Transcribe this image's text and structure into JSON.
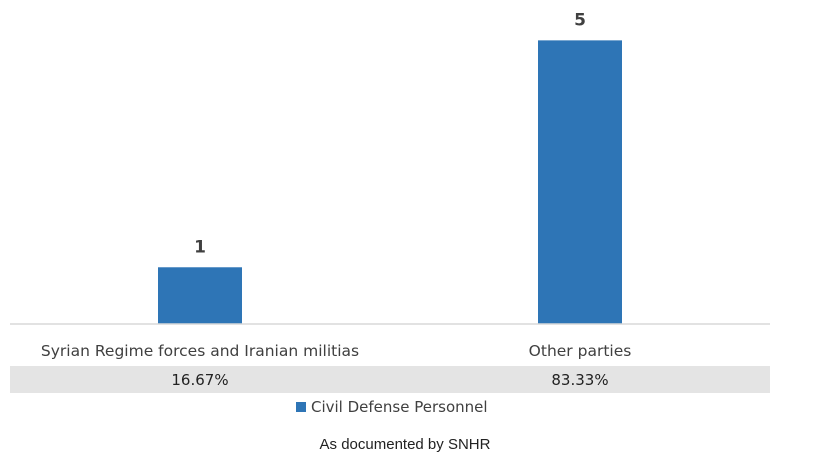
{
  "chart_data": {
    "type": "bar",
    "categories": [
      "Syrian Regime forces and Iranian militias",
      "Other parties"
    ],
    "series": [
      {
        "name": "Civil Defense Personnel",
        "values": [
          1,
          5
        ],
        "color": "#2E75B6"
      }
    ],
    "data_labels": [
      "1",
      "5"
    ],
    "percentages": [
      "16.67%",
      "83.33%"
    ],
    "ylim": [
      0,
      5.5
    ],
    "grid": false,
    "legend_position": "bottom",
    "footnote": "As documented by SNHR"
  }
}
